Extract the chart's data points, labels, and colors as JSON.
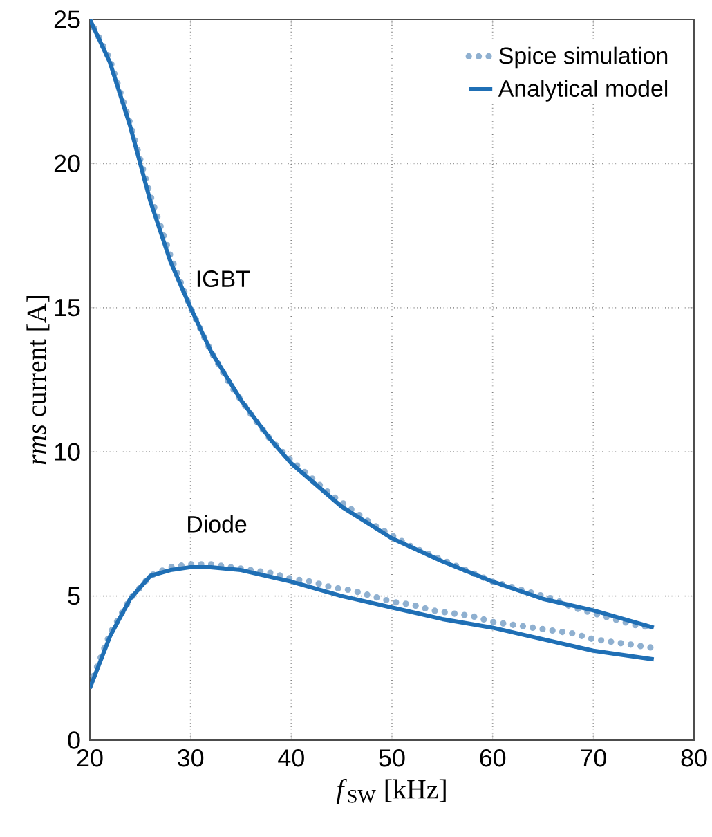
{
  "chart_data": {
    "type": "line",
    "xlabel": "*f*$_{SW}$ [kHz]",
    "ylabel": "*rms* current [A]",
    "xlim": [
      20,
      80
    ],
    "ylim": [
      0,
      25
    ],
    "xticks": [
      20,
      30,
      40,
      50,
      60,
      70,
      80
    ],
    "yticks": [
      0,
      5,
      10,
      15,
      20,
      25
    ],
    "grid": true,
    "legend": "top right",
    "annotations": [
      "IGBT",
      "Diode"
    ],
    "series": [
      {
        "name": "Spice simulation",
        "line_style": "dotted",
        "color": "#8fb0d0",
        "x": [
          20,
          22,
          24,
          26,
          28,
          30,
          32,
          34,
          36,
          38,
          40,
          42,
          44,
          46,
          48,
          50,
          52,
          54,
          56,
          58,
          60,
          62,
          64,
          66,
          68,
          70,
          72,
          74,
          76
        ],
        "values": [
          25,
          23.6,
          21.4,
          18.9,
          16.8,
          15.0,
          13.5,
          12.3,
          11.3,
          10.4,
          9.7,
          9.1,
          8.5,
          8.0,
          7.5,
          7.1,
          6.7,
          6.4,
          6.1,
          5.8,
          5.5,
          5.3,
          5.1,
          4.9,
          4.6,
          4.4,
          4.2,
          4.0,
          3.9
        ]
      },
      {
        "name": "Analytical model",
        "color": "#1f6fb5",
        "x": [
          20,
          22,
          24,
          26,
          28,
          30,
          32,
          35,
          38,
          40,
          45,
          50,
          55,
          60,
          65,
          70,
          76
        ],
        "values": [
          25,
          23.5,
          21.3,
          18.7,
          16.6,
          15.0,
          13.5,
          11.8,
          10.4,
          9.6,
          8.1,
          7.0,
          6.2,
          5.5,
          4.9,
          4.5,
          3.9
        ]
      },
      {
        "line_style": "dotted",
        "color": "#8fb0d0",
        "x": [
          20,
          22,
          24,
          26,
          28,
          30,
          32,
          34,
          36,
          38,
          40,
          42,
          44,
          46,
          48,
          50,
          52,
          54,
          56,
          58,
          60,
          62,
          64,
          66,
          68,
          70,
          72,
          74,
          76
        ],
        "values": [
          1.9,
          3.7,
          4.9,
          5.7,
          6.0,
          6.1,
          6.1,
          6.0,
          5.9,
          5.8,
          5.6,
          5.5,
          5.3,
          5.2,
          5.0,
          4.8,
          4.7,
          4.5,
          4.4,
          4.3,
          4.1,
          4.0,
          3.9,
          3.8,
          3.7,
          3.5,
          3.4,
          3.3,
          3.2
        ]
      },
      {
        "color": "#1f6fb5",
        "x": [
          20,
          22,
          24,
          26,
          28,
          30,
          32,
          35,
          40,
          45,
          50,
          55,
          60,
          65,
          70,
          76
        ],
        "values": [
          1.8,
          3.6,
          4.9,
          5.7,
          5.9,
          6.0,
          6.0,
          5.9,
          5.5,
          5.0,
          4.6,
          4.2,
          3.9,
          3.5,
          3.1,
          2.8
        ]
      }
    ]
  }
}
